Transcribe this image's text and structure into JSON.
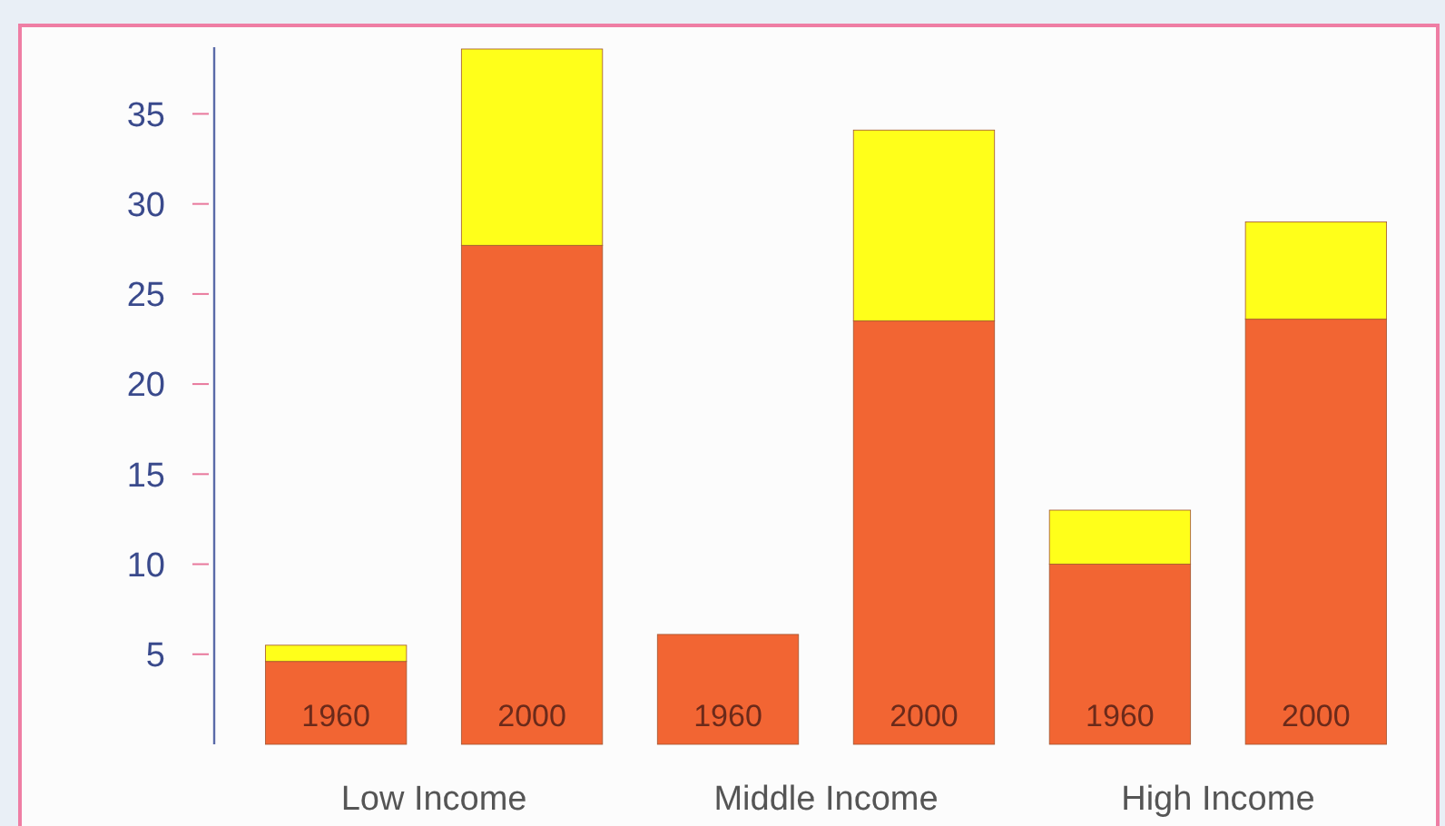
{
  "chart_data": {
    "type": "bar",
    "stacked": true,
    "categories": [
      "1960",
      "2000",
      "1960",
      "2000",
      "1960",
      "2000"
    ],
    "series": [
      {
        "color": "#f26533",
        "values": [
          4.6,
          27.7,
          6.1,
          23.5,
          10.0,
          23.6
        ]
      },
      {
        "color": "#ffff1a",
        "values": [
          0.9,
          10.9,
          null,
          10.6,
          3.0,
          5.4
        ]
      }
    ],
    "ylim": [
      0,
      38.7
    ],
    "yticks": [
      5,
      10,
      15,
      20,
      25,
      30,
      35
    ],
    "annotations": [
      "Low Income",
      "Middle Income",
      "High Income"
    ]
  }
}
